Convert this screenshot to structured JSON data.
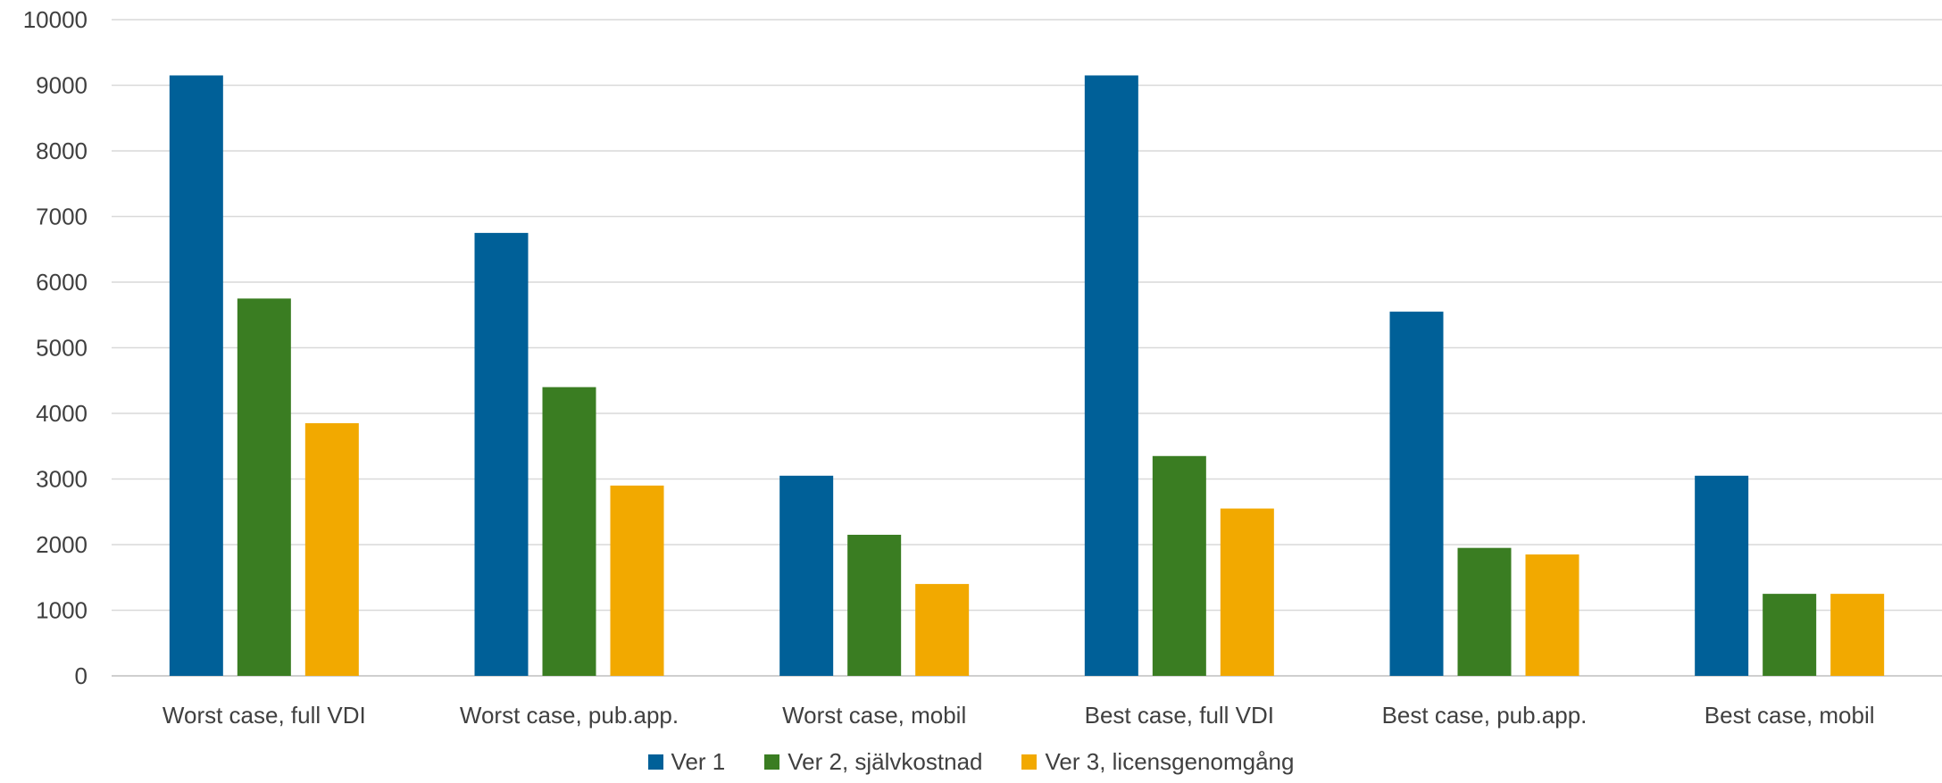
{
  "chart_data": {
    "type": "bar",
    "title": "",
    "xlabel": "",
    "ylabel": "",
    "ylim": [
      0,
      10000
    ],
    "yticks": [
      0,
      1000,
      2000,
      3000,
      4000,
      5000,
      6000,
      7000,
      8000,
      9000,
      10000
    ],
    "grid": true,
    "legend_position": "bottom",
    "categories": [
      "Worst case, full VDI",
      "Worst case, pub.app.",
      "Worst case, mobil",
      "Best case, full VDI",
      "Best case, pub.app.",
      "Best case, mobil"
    ],
    "series": [
      {
        "name": "Ver 1",
        "color": "#006098",
        "values": [
          9150,
          6750,
          3050,
          9150,
          5550,
          3050
        ]
      },
      {
        "name": "Ver 2, självkostnad",
        "color": "#3A7D22",
        "values": [
          5750,
          4400,
          2150,
          3350,
          1950,
          1250
        ]
      },
      {
        "name": "Ver 3, licensgenomgång",
        "color": "#F2A900",
        "values": [
          3850,
          2900,
          1400,
          2550,
          1850,
          1250
        ]
      }
    ]
  }
}
